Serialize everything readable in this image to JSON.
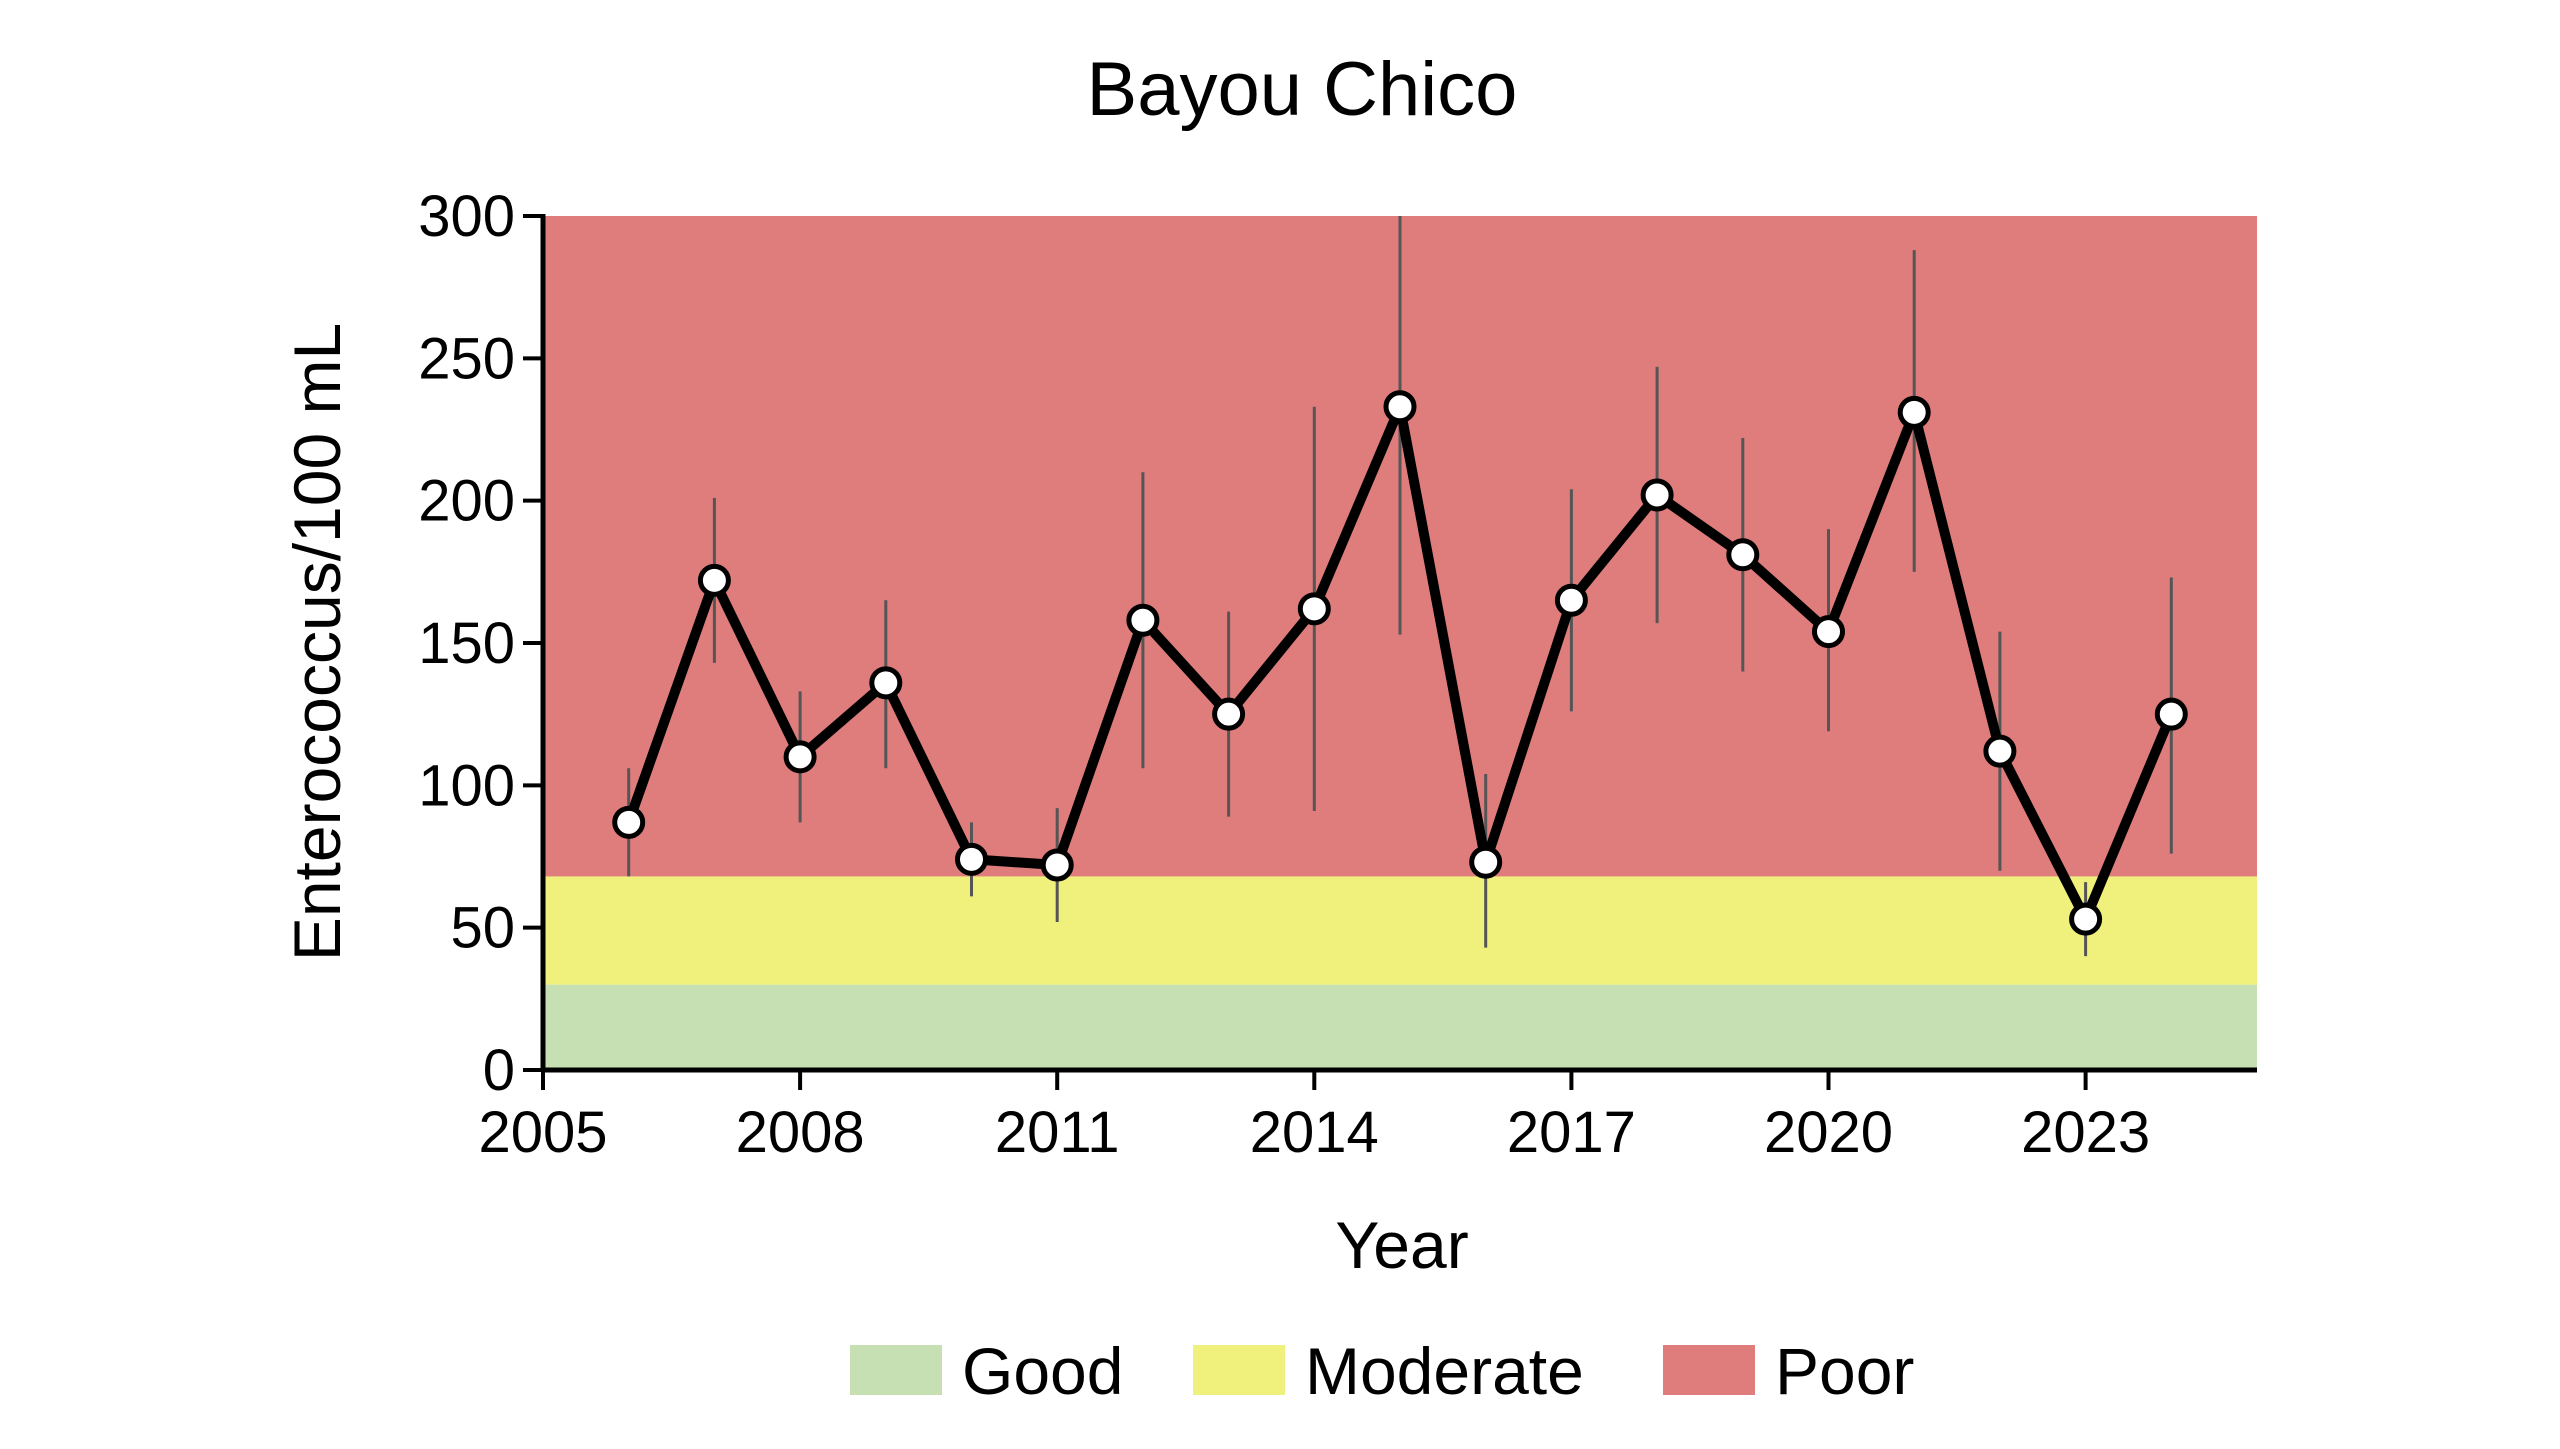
{
  "chart_data": {
    "type": "line",
    "title": "Bayou Chico",
    "xlabel": "Year",
    "ylabel": "Enterococcus/100 mL",
    "xlim": [
      2005,
      2025
    ],
    "ylim": [
      0,
      300
    ],
    "xticks": [
      2005,
      2008,
      2011,
      2014,
      2017,
      2020,
      2023
    ],
    "yticks": [
      0,
      50,
      100,
      150,
      200,
      250,
      300
    ],
    "grid": false,
    "bands": [
      {
        "label": "Good",
        "from": 0,
        "to": 30,
        "color": "#c6e0b4"
      },
      {
        "label": "Moderate",
        "from": 30,
        "to": 68,
        "color": "#f0f07d"
      },
      {
        "label": "Poor",
        "from": 68,
        "to": 300,
        "color": "#df7c7c"
      }
    ],
    "legend_position": "bottom",
    "series": [
      {
        "color": "#000000",
        "marker": "circle",
        "x": [
          2006,
          2007,
          2008,
          2009,
          2010,
          2011,
          2012,
          2013,
          2014,
          2015,
          2016,
          2017,
          2018,
          2019,
          2020,
          2021,
          2022,
          2023,
          2024
        ],
        "y": [
          87,
          172,
          110,
          136,
          74,
          72,
          158,
          125,
          162,
          233,
          73,
          165,
          202,
          181,
          154,
          231,
          112,
          53,
          125
        ],
        "err_low": [
          68,
          143,
          87,
          106,
          61,
          52,
          106,
          89,
          91,
          153,
          43,
          126,
          157,
          140,
          119,
          175,
          70,
          40,
          76
        ],
        "err_high": [
          106,
          201,
          133,
          165,
          87,
          92,
          210,
          161,
          233,
          300,
          104,
          204,
          247,
          222,
          190,
          288,
          154,
          66,
          173
        ]
      }
    ]
  }
}
